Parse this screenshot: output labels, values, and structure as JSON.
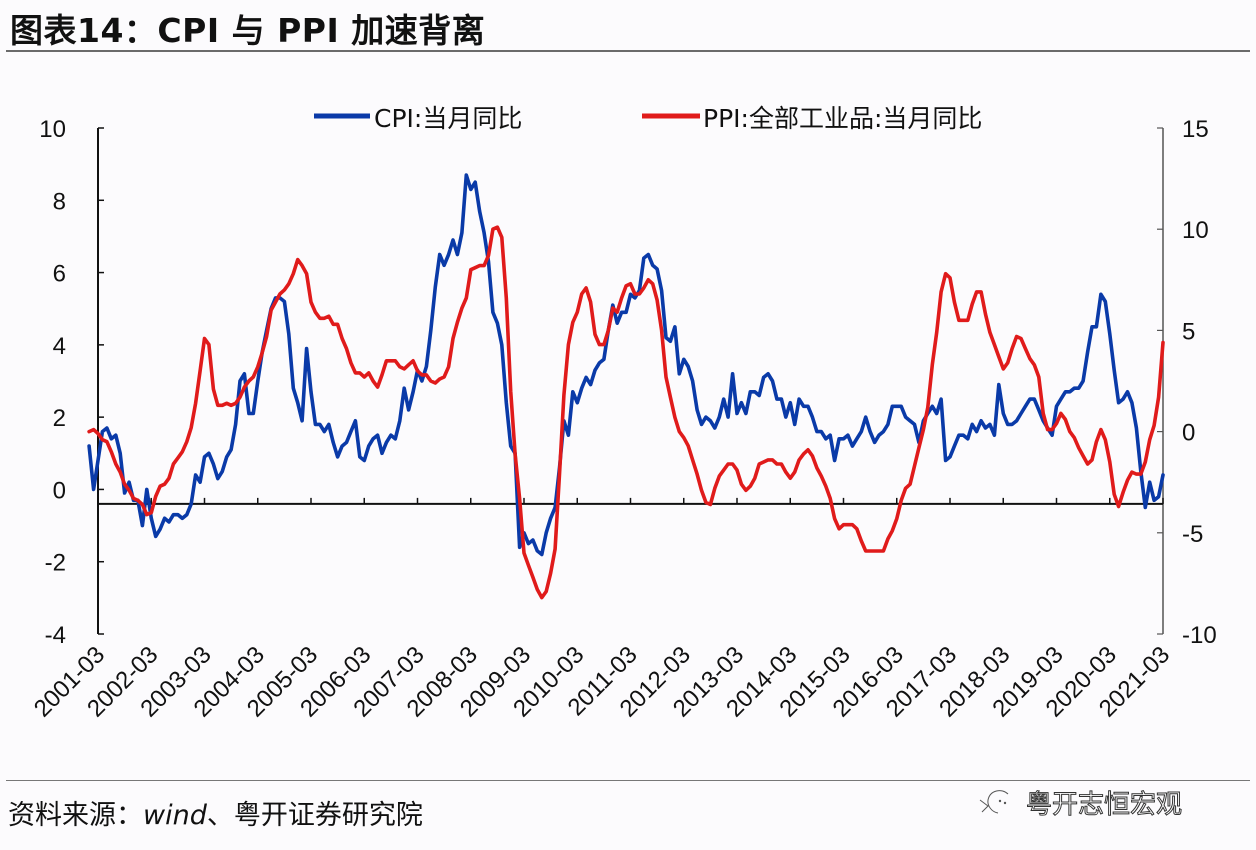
{
  "header": {
    "title": "图表14：CPI 与 PPI 加速背离"
  },
  "footer": {
    "source_prefix": "资料来源：",
    "source_en": "wind",
    "source_suffix": "、粤开证券研究院",
    "watermark": "粤开志恒宏观"
  },
  "colors": {
    "cpi": "#0a3aa8",
    "ppi": "#e01b1b",
    "axis": "#111111"
  },
  "chart_data": {
    "type": "line",
    "title": "CPI 与 PPI 加速背离",
    "xlabel": "",
    "ylabel_left": "",
    "ylabel_right": "",
    "x_start": "2001-01",
    "x_end": "2021-03",
    "x_tick_labels": [
      "2001-03",
      "2002-03",
      "2003-03",
      "2004-03",
      "2005-03",
      "2006-03",
      "2007-03",
      "2008-03",
      "2009-03",
      "2010-03",
      "2011-03",
      "2012-03",
      "2013-03",
      "2014-03",
      "2015-03",
      "2016-03",
      "2017-03",
      "2018-03",
      "2019-03",
      "2020-03",
      "2021-03"
    ],
    "y_left": {
      "ticks": [
        10,
        8,
        6,
        4,
        2,
        0,
        -2,
        -4
      ],
      "ylim": [
        -4,
        10
      ]
    },
    "y_right": {
      "ticks": [
        15,
        10,
        5,
        0,
        -5,
        -10
      ],
      "ylim": [
        -10,
        15
      ]
    },
    "x_axis_crosses_left_at": -0.4,
    "grid": false,
    "legend_position": "top-center",
    "series": [
      {
        "name": "CPI:当月同比",
        "axis": "left",
        "color": "#0a3aa8",
        "values": [
          1.2,
          0.0,
          0.8,
          1.6,
          1.7,
          1.4,
          1.5,
          1.0,
          -0.1,
          0.2,
          -0.3,
          -0.3,
          -1.0,
          0.0,
          -0.8,
          -1.3,
          -1.1,
          -0.8,
          -0.9,
          -0.7,
          -0.7,
          -0.8,
          -0.7,
          -0.4,
          0.4,
          0.2,
          0.9,
          1.0,
          0.7,
          0.3,
          0.5,
          0.9,
          1.1,
          1.8,
          3.0,
          3.2,
          2.1,
          2.1,
          3.0,
          3.8,
          4.4,
          5.0,
          5.3,
          5.3,
          5.2,
          4.3,
          2.8,
          2.4,
          1.9,
          3.9,
          2.7,
          1.8,
          1.8,
          1.6,
          1.8,
          1.3,
          0.9,
          1.2,
          1.3,
          1.6,
          1.9,
          0.9,
          0.8,
          1.2,
          1.4,
          1.5,
          1.0,
          1.3,
          1.5,
          1.4,
          1.9,
          2.8,
          2.2,
          2.7,
          3.3,
          3.0,
          3.4,
          4.4,
          5.6,
          6.5,
          6.2,
          6.5,
          6.9,
          6.5,
          7.1,
          8.7,
          8.3,
          8.5,
          7.7,
          7.1,
          6.3,
          4.9,
          4.6,
          4.0,
          2.4,
          1.2,
          1.0,
          -1.6,
          -1.2,
          -1.5,
          -1.4,
          -1.7,
          -1.8,
          -1.2,
          -0.8,
          -0.5,
          0.6,
          1.9,
          1.5,
          2.7,
          2.4,
          2.8,
          3.1,
          2.9,
          3.3,
          3.5,
          3.6,
          4.4,
          5.1,
          4.6,
          4.9,
          4.9,
          5.4,
          5.3,
          5.5,
          6.4,
          6.5,
          6.2,
          6.1,
          5.5,
          4.2,
          4.1,
          4.5,
          3.2,
          3.6,
          3.4,
          3.0,
          2.2,
          1.8,
          2.0,
          1.9,
          1.7,
          2.0,
          2.5,
          2.0,
          3.2,
          2.1,
          2.4,
          2.1,
          2.7,
          2.7,
          2.6,
          3.1,
          3.2,
          3.0,
          2.5,
          2.5,
          2.0,
          2.4,
          1.8,
          2.5,
          2.3,
          2.3,
          2.0,
          1.6,
          1.6,
          1.4,
          1.5,
          0.8,
          1.4,
          1.4,
          1.5,
          1.2,
          1.4,
          1.6,
          2.0,
          1.6,
          1.3,
          1.5,
          1.6,
          1.8,
          2.3,
          2.3,
          2.3,
          2.0,
          1.9,
          1.8,
          1.3,
          1.9,
          2.1,
          2.3,
          2.1,
          2.5,
          0.8,
          0.9,
          1.2,
          1.5,
          1.5,
          1.4,
          1.8,
          1.6,
          1.9,
          1.7,
          1.8,
          1.5,
          2.9,
          2.1,
          1.8,
          1.8,
          1.9,
          2.1,
          2.3,
          2.5,
          2.5,
          2.2,
          1.9,
          1.7,
          1.5,
          2.3,
          2.5,
          2.7,
          2.7,
          2.8,
          2.8,
          3.0,
          3.8,
          4.5,
          4.5,
          5.4,
          5.2,
          4.3,
          3.3,
          2.4,
          2.5,
          2.7,
          2.4,
          1.7,
          0.5,
          -0.5,
          0.2,
          -0.3,
          -0.2,
          0.4
        ]
      },
      {
        "name": "PPI:全部工业品:当月同比",
        "axis": "right",
        "color": "#e01b1b",
        "values": [
          0.0,
          0.1,
          -0.1,
          -0.4,
          -0.5,
          -1.0,
          -1.6,
          -2.0,
          -2.6,
          -2.9,
          -3.3,
          -3.4,
          -3.6,
          -4.1,
          -4.0,
          -3.2,
          -2.7,
          -2.6,
          -2.3,
          -1.6,
          -1.3,
          -1.0,
          -0.5,
          0.2,
          1.4,
          3.0,
          4.6,
          4.3,
          2.1,
          1.3,
          1.3,
          1.4,
          1.3,
          1.4,
          1.7,
          2.2,
          2.5,
          2.7,
          3.2,
          3.9,
          4.7,
          6.0,
          6.4,
          6.8,
          7.0,
          7.3,
          7.8,
          8.5,
          8.2,
          7.8,
          6.4,
          5.9,
          5.6,
          5.6,
          5.7,
          5.3,
          5.3,
          4.6,
          4.1,
          3.4,
          2.9,
          2.9,
          2.7,
          2.9,
          2.5,
          2.2,
          2.8,
          3.5,
          3.5,
          3.5,
          3.2,
          3.1,
          3.3,
          3.5,
          3.0,
          2.8,
          2.8,
          2.5,
          2.4,
          2.6,
          2.7,
          3.2,
          4.6,
          5.4,
          6.1,
          6.6,
          8.0,
          8.1,
          8.2,
          8.2,
          8.7,
          10.0,
          10.1,
          9.6,
          6.6,
          2.0,
          -1.1,
          -3.3,
          -6.0,
          -6.6,
          -7.2,
          -7.8,
          -8.2,
          -7.9,
          -7.0,
          -5.8,
          -2.1,
          1.8,
          4.3,
          5.4,
          5.9,
          6.8,
          7.1,
          6.4,
          4.8,
          4.3,
          4.3,
          5.0,
          6.1,
          5.9,
          6.6,
          7.2,
          7.3,
          6.8,
          6.8,
          7.1,
          7.5,
          7.3,
          6.5,
          5.0,
          2.7,
          1.7,
          0.7,
          0.0,
          -0.3,
          -0.7,
          -1.4,
          -2.1,
          -2.9,
          -3.5,
          -3.6,
          -2.8,
          -2.2,
          -1.9,
          -1.6,
          -1.6,
          -1.9,
          -2.6,
          -2.9,
          -2.7,
          -2.3,
          -1.6,
          -1.5,
          -1.4,
          -1.4,
          -1.6,
          -1.6,
          -2.0,
          -2.3,
          -2.0,
          -1.4,
          -1.1,
          -0.9,
          -1.2,
          -1.8,
          -2.2,
          -2.7,
          -3.3,
          -4.3,
          -4.8,
          -4.6,
          -4.6,
          -4.6,
          -4.8,
          -5.4,
          -5.9,
          -5.9,
          -5.9,
          -5.9,
          -5.9,
          -5.3,
          -4.9,
          -4.3,
          -3.4,
          -2.8,
          -2.6,
          -1.7,
          -0.8,
          0.1,
          1.2,
          3.3,
          4.9,
          6.9,
          7.8,
          7.6,
          6.4,
          5.5,
          5.5,
          5.5,
          6.3,
          6.9,
          6.9,
          5.8,
          4.9,
          4.3,
          3.7,
          3.1,
          3.4,
          4.1,
          4.7,
          4.6,
          4.1,
          3.6,
          3.3,
          2.7,
          0.9,
          0.1,
          0.1,
          0.4,
          0.9,
          0.6,
          0.0,
          -0.3,
          -0.8,
          -1.2,
          -1.6,
          -1.4,
          -0.5,
          0.1,
          -0.4,
          -1.5,
          -3.1,
          -3.7,
          -3.0,
          -2.4,
          -2.0,
          -2.1,
          -2.1,
          -1.5,
          -0.4,
          0.3,
          1.7,
          4.4
        ]
      }
    ]
  },
  "legend": {
    "cpi_label": "CPI:当月同比",
    "ppi_label": "PPI:全部工业品:当月同比"
  }
}
